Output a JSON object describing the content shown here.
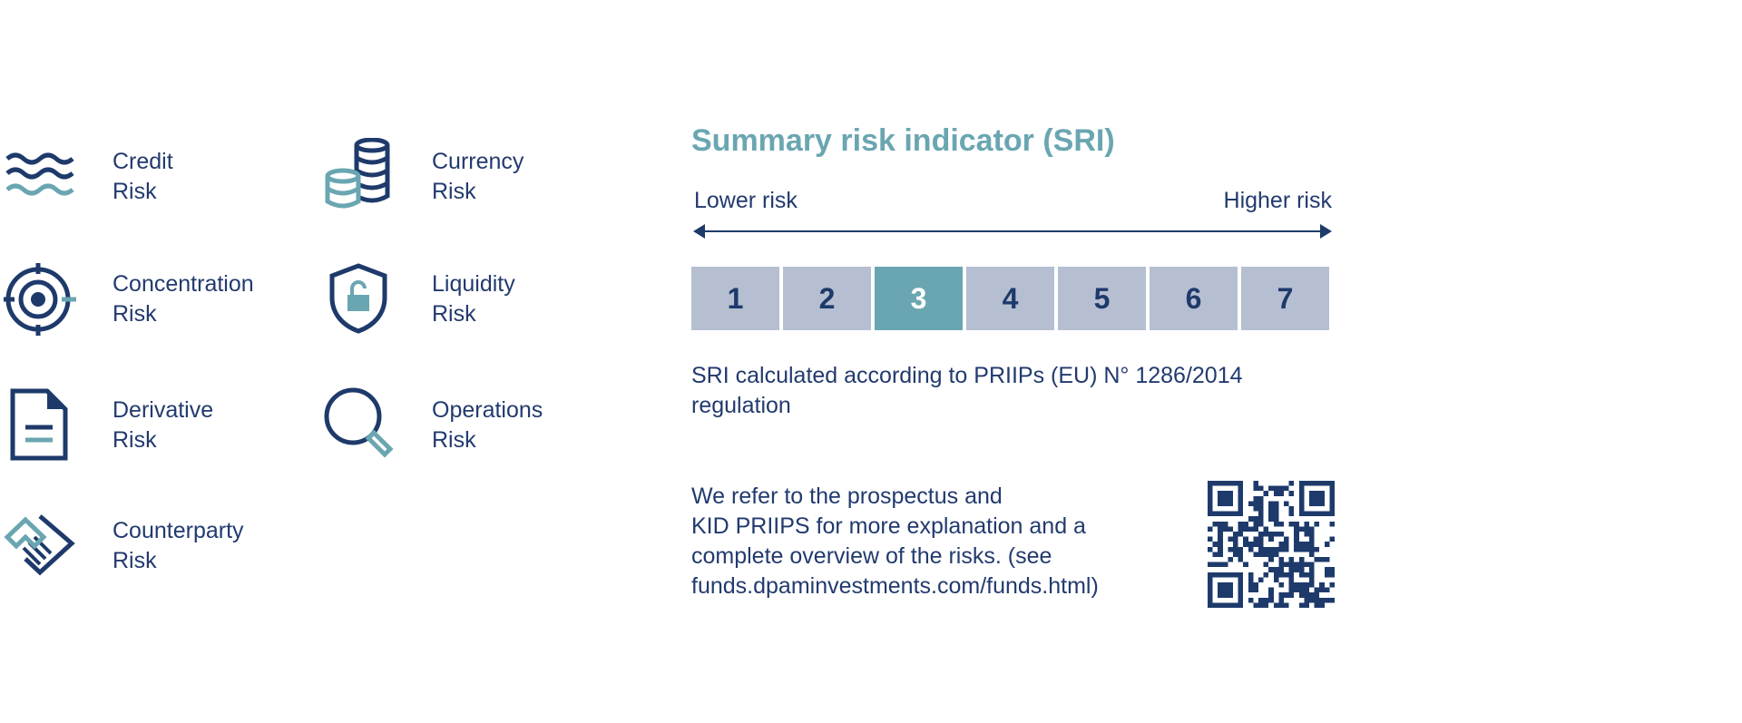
{
  "risks": [
    {
      "icon": "waves-icon",
      "line1": "Credit",
      "line2": "Risk"
    },
    {
      "icon": "coins-icon",
      "line1": "Currency",
      "line2": "Risk"
    },
    {
      "icon": "target-icon",
      "line1": "Concentration",
      "line2": "Risk"
    },
    {
      "icon": "shield-lock-icon",
      "line1": "Liquidity",
      "line2": "Risk"
    },
    {
      "icon": "document-icon",
      "line1": "Derivative",
      "line2": "Risk"
    },
    {
      "icon": "magnifier-icon",
      "line1": "Operations",
      "line2": "Risk"
    },
    {
      "icon": "handshake-icon",
      "line1": "Counterparty",
      "line2": "Risk"
    }
  ],
  "sri": {
    "title": "Summary risk indicator (SRI)",
    "lower_label": "Lower risk",
    "higher_label": "Higher risk",
    "levels": [
      "1",
      "2",
      "3",
      "4",
      "5",
      "6",
      "7"
    ],
    "selected_level": "3",
    "note": "SRI calculated according to PRIIPs (EU) N° 1286/2014 regulation",
    "refer_lines": [
      "We refer to the prospectus and",
      "KID PRIIPS for more explanation and a",
      "complete overview of the risks. (see",
      "funds.dpaminvestments.com/funds.html)"
    ]
  },
  "colors": {
    "navy": "#1e3a6b",
    "teal": "#6aa6b1",
    "inactive_box": "#b5bfd1"
  }
}
